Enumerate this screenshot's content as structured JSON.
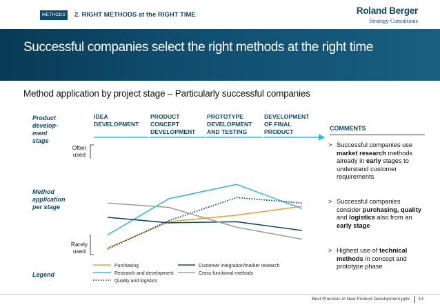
{
  "header": {
    "section_tag": "METHODS",
    "section_title": "2. RIGHT METHODS at the RIGHT TIME",
    "logo_line1": "Roland Berger",
    "logo_line2": "Strategy Consultants"
  },
  "main_title": "Successful companies select the right methods at the right time",
  "subtitle": "Method application by project stage – Particularly successful companies",
  "side_labels": {
    "product_stage": [
      "Product",
      "develop-",
      "ment",
      "stage"
    ],
    "method_application": [
      "Method",
      "application",
      "per stage"
    ],
    "legend": "Legend"
  },
  "comments": {
    "heading": "COMMENTS",
    "items": [
      {
        "bullet": ">",
        "parts": [
          [
            "Successful companies use ",
            false
          ],
          [
            "market research",
            true
          ],
          [
            " methods already in ",
            false
          ],
          [
            "early",
            true
          ],
          [
            " stages to understand customer requirements",
            false
          ]
        ]
      },
      {
        "bullet": ">",
        "parts": [
          [
            "Successful companies consider ",
            false
          ],
          [
            "purchasing, quality",
            true
          ],
          [
            " and ",
            false
          ],
          [
            "logistics",
            true
          ],
          [
            " also from an ",
            false
          ],
          [
            "early stage",
            true
          ]
        ]
      },
      {
        "bullet": ">",
        "parts": [
          [
            "Highest use of ",
            false
          ],
          [
            "technical methods",
            true
          ],
          [
            " in concept and prototype phase",
            false
          ]
        ]
      }
    ]
  },
  "footer": {
    "text": "Best Practices in New Product Development.pptx",
    "page": "13"
  },
  "chart_data": {
    "type": "line",
    "categories": [
      [
        "IDEA",
        "DEVELOPMENT"
      ],
      [
        "PRODUCT",
        "CONCEPT",
        "DEVELOPMENT"
      ],
      [
        "PROTOTYPE",
        "DEVELOPMENT",
        "AND TESTING"
      ],
      [
        "DEVELOPMENT",
        "OF FINAL",
        "PRODUCT"
      ]
    ],
    "y_axis": {
      "top_label": [
        "Often",
        "used"
      ],
      "bottom_label": [
        "Rarely",
        "used"
      ],
      "ylim": [
        0,
        100
      ]
    },
    "series": [
      {
        "name": "Purchasing",
        "values": [
          6,
          30,
          36,
          44
        ],
        "color": "#f0a030",
        "dash": "none"
      },
      {
        "name": "Research and development",
        "values": [
          18,
          51,
          64,
          42
        ],
        "color": "#33b9e3",
        "dash": "none"
      },
      {
        "name": "Quality and logistics",
        "values": [
          5,
          31,
          52,
          47
        ],
        "color": "#0f4a68",
        "dash": "dotted"
      },
      {
        "name": "Customer integration/market research",
        "values": [
          34,
          29,
          30,
          22
        ],
        "color": "#0f4a68",
        "dash": "none"
      },
      {
        "name": "Cross functional methods",
        "values": [
          47,
          43,
          25,
          14
        ],
        "color": "#a89f96",
        "dash": "none"
      }
    ],
    "legend_position": "bottom"
  }
}
